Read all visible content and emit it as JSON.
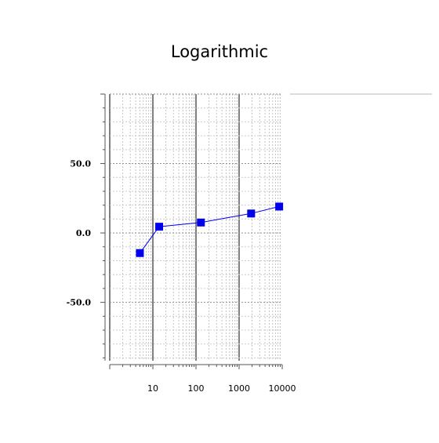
{
  "chart_data": {
    "type": "line",
    "title": "Logarithmic",
    "xlabel": "",
    "ylabel": "",
    "x_scale": "log",
    "xlim": [
      1,
      10000
    ],
    "ylim": [
      -92,
      100
    ],
    "x_tick_labels": [
      "10",
      "100",
      "1000",
      "10000"
    ],
    "y_tick_labels": [
      "50.0",
      "0.0",
      "-50.0"
    ],
    "grid": true,
    "legend": "none",
    "series": [
      {
        "color": "#0000ee",
        "marker": "square",
        "x": [
          5,
          14,
          130,
          1900,
          8500
        ],
        "y": [
          -14.5,
          4.5,
          7.5,
          14,
          19
        ]
      }
    ]
  }
}
